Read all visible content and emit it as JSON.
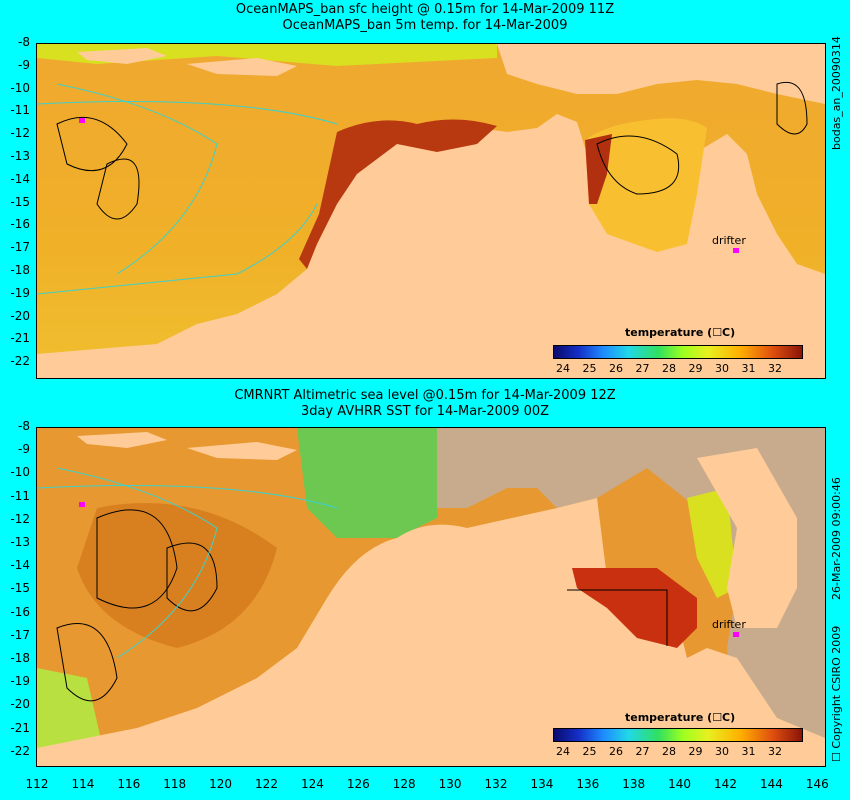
{
  "panel_top": {
    "title_line1": "OceanMAPS_ban sfc height @ 0.15m for 14-Mar-2009 11Z",
    "title_line2": "OceanMAPS_ban 5m temp. for 14-Mar-2009",
    "side_label": "bodas_an_20090314",
    "legend_title": "temperature (☐C)",
    "drifter_label": "drifter"
  },
  "panel_bottom": {
    "title_line1": "CMRNRT Altimetric sea level  @0.15m  for 14-Mar-2009 12Z",
    "title_line2": "3day AVHRR SST for 14-Mar-2009 00Z",
    "side_label": "26-Mar-2009 09:00:46",
    "side_label2": "☐ Copyright CSIRO 2009",
    "legend_title": "temperature (☐C)",
    "drifter_label": "drifter"
  },
  "y_axis_labels": [
    "-8",
    "-9",
    "-10",
    "-11",
    "-12",
    "-13",
    "-14",
    "-15",
    "-16",
    "-17",
    "-18",
    "-19",
    "-20",
    "-21",
    "-22"
  ],
  "x_axis_labels": [
    "112",
    "114",
    "116",
    "118",
    "120",
    "122",
    "124",
    "126",
    "128",
    "130",
    "132",
    "134",
    "136",
    "138",
    "140",
    "142",
    "144",
    "146"
  ],
  "colorbar_ticks": [
    "24",
    "25",
    "26",
    "27",
    "28",
    "29",
    "30",
    "31",
    "32"
  ],
  "colors": {
    "background": "#00ffff",
    "land": "#ffcc99",
    "no_data": "#c8aa8c",
    "warm_ocean": "#f0a020",
    "hot_ocean": "#a02010",
    "contour": "#40d0c8",
    "drifter": "#ff00ff"
  }
}
